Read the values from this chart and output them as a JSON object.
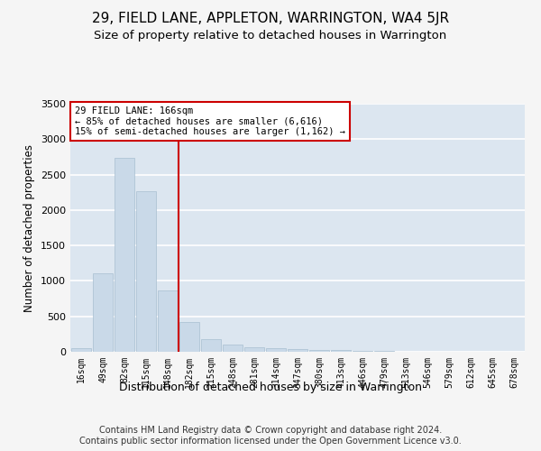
{
  "title": "29, FIELD LANE, APPLETON, WARRINGTON, WA4 5JR",
  "subtitle": "Size of property relative to detached houses in Warrington",
  "xlabel": "Distribution of detached houses by size in Warrington",
  "ylabel": "Number of detached properties",
  "categories": [
    "16sqm",
    "49sqm",
    "82sqm",
    "115sqm",
    "148sqm",
    "182sqm",
    "215sqm",
    "248sqm",
    "281sqm",
    "314sqm",
    "347sqm",
    "380sqm",
    "413sqm",
    "446sqm",
    "479sqm",
    "513sqm",
    "546sqm",
    "579sqm",
    "612sqm",
    "645sqm",
    "678sqm"
  ],
  "values": [
    55,
    1105,
    2730,
    2260,
    870,
    415,
    175,
    100,
    70,
    55,
    35,
    30,
    22,
    10,
    8,
    5,
    3,
    2,
    1,
    1,
    0
  ],
  "bar_color": "#c9d9e8",
  "bar_edgecolor": "#a8bfd0",
  "vline_x": 4.5,
  "vline_color": "#cc0000",
  "annotation_text": "29 FIELD LANE: 166sqm\n← 85% of detached houses are smaller (6,616)\n15% of semi-detached houses are larger (1,162) →",
  "annotation_box_facecolor": "#ffffff",
  "annotation_box_edgecolor": "#cc0000",
  "ylim": [
    0,
    3500
  ],
  "yticks": [
    0,
    500,
    1000,
    1500,
    2000,
    2500,
    3000,
    3500
  ],
  "fig_facecolor": "#f5f5f5",
  "plot_facecolor": "#dce6f0",
  "grid_color": "#ffffff",
  "title_fontsize": 11,
  "subtitle_fontsize": 9.5,
  "ylabel_fontsize": 8.5,
  "xlabel_fontsize": 9,
  "annotation_fontsize": 7.5,
  "tick_fontsize": 7,
  "footer_text": "Contains HM Land Registry data © Crown copyright and database right 2024.\nContains public sector information licensed under the Open Government Licence v3.0.",
  "footer_fontsize": 7
}
